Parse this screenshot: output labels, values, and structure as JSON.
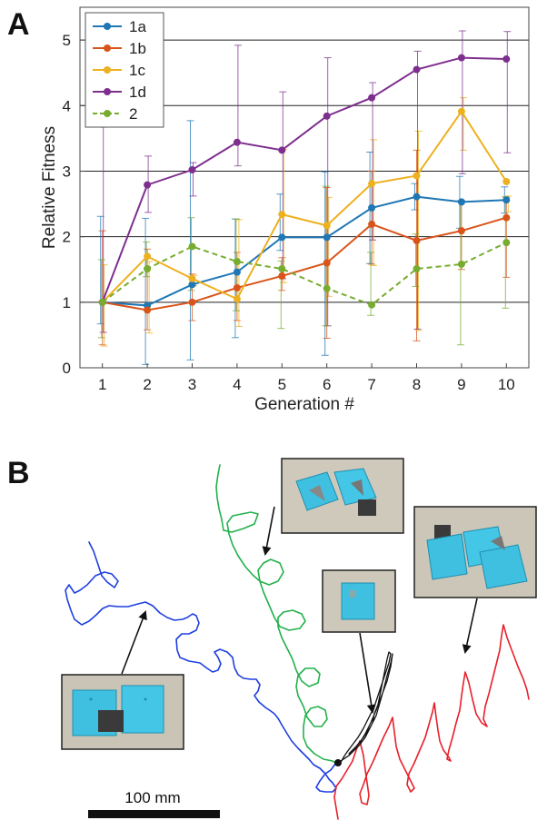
{
  "panels": {
    "a_label": "A",
    "b_label": "B"
  },
  "chart_data": {
    "type": "line",
    "xlabel": "Generation #",
    "ylabel": "Relative Fitness",
    "x": [
      1,
      2,
      3,
      4,
      5,
      6,
      7,
      8,
      9,
      10
    ],
    "xlim": [
      0.5,
      10.5
    ],
    "ylim": [
      0,
      5.5
    ],
    "yticks": [
      0,
      1,
      2,
      3,
      4,
      5
    ],
    "grid": "horizontal",
    "legend": "top-left",
    "series": [
      {
        "name": "1a",
        "color": "#1f77b4",
        "dashed": false,
        "values": [
          1.0,
          0.95,
          1.27,
          1.46,
          1.99,
          1.99,
          2.44,
          2.61,
          2.53,
          2.56
        ],
        "err_low": [
          0.67,
          0.05,
          0.12,
          0.46,
          1.79,
          0.19,
          1.59,
          2.41,
          2.13,
          2.36
        ],
        "err_high": [
          2.31,
          2.28,
          3.77,
          2.27,
          2.65,
          2.99,
          3.29,
          2.81,
          2.92,
          2.76
        ]
      },
      {
        "name": "1b",
        "color": "#d9541a",
        "dashed": false,
        "values": [
          1.0,
          0.88,
          1.0,
          1.22,
          1.4,
          1.6,
          2.19,
          1.94,
          2.09,
          2.29
        ],
        "err_low": [
          0.35,
          0.58,
          0.72,
          0.72,
          1.18,
          0.45,
          1.58,
          0.41,
          1.5,
          1.38
        ],
        "err_high": [
          2.09,
          1.81,
          1.43,
          1.76,
          1.68,
          2.75,
          3.0,
          3.32,
          2.55,
          2.6
        ]
      },
      {
        "name": "1c",
        "color": "#edb120",
        "dashed": false,
        "values": [
          1.0,
          1.7,
          1.36,
          1.05,
          2.34,
          2.17,
          2.81,
          2.93,
          3.91,
          2.84
        ],
        "err_low": [
          0.33,
          0.53,
          1.25,
          0.63,
          1.3,
          1.09,
          1.56,
          0.57,
          3.32,
          2.38
        ],
        "err_high": [
          1.57,
          1.62,
          1.41,
          2.26,
          3.33,
          2.6,
          3.48,
          3.61,
          4.12,
          2.62
        ]
      },
      {
        "name": "1d",
        "color": "#7e2f8e",
        "dashed": false,
        "values": [
          1.0,
          2.79,
          3.02,
          3.44,
          3.32,
          3.84,
          4.12,
          4.55,
          4.73,
          4.71
        ],
        "err_low": [
          0.54,
          2.37,
          2.62,
          3.08,
          1.36,
          0.64,
          1.95,
          0.59,
          2.96,
          3.28
        ],
        "err_high": [
          3.67,
          3.23,
          3.13,
          4.92,
          4.21,
          4.73,
          4.35,
          4.83,
          5.14,
          5.13
        ]
      },
      {
        "name": "2",
        "color": "#77ac30",
        "dashed": true,
        "values": [
          1.0,
          1.51,
          1.85,
          1.62,
          1.51,
          1.21,
          0.96,
          1.51,
          1.58,
          1.91
        ],
        "err_low": [
          0.46,
          1.39,
          1.18,
          0.87,
          0.6,
          0.64,
          0.8,
          1.24,
          0.35,
          0.91
        ],
        "err_high": [
          1.65,
          1.92,
          2.29,
          2.27,
          1.63,
          2.77,
          1.76,
          2.04,
          2.55,
          2.61
        ]
      }
    ]
  },
  "panel_b": {
    "scale_bar_label": "100 mm",
    "path_colors": {
      "blue": "#1f3fe0",
      "green": "#22b14c",
      "red": "#e8202a",
      "black": "#111111"
    },
    "photo_colors": {
      "cube": "#3fc0e0",
      "cube_dark": "#1f8fb0",
      "accent": "#5a5a5a",
      "background": "#c9c4b6"
    }
  }
}
